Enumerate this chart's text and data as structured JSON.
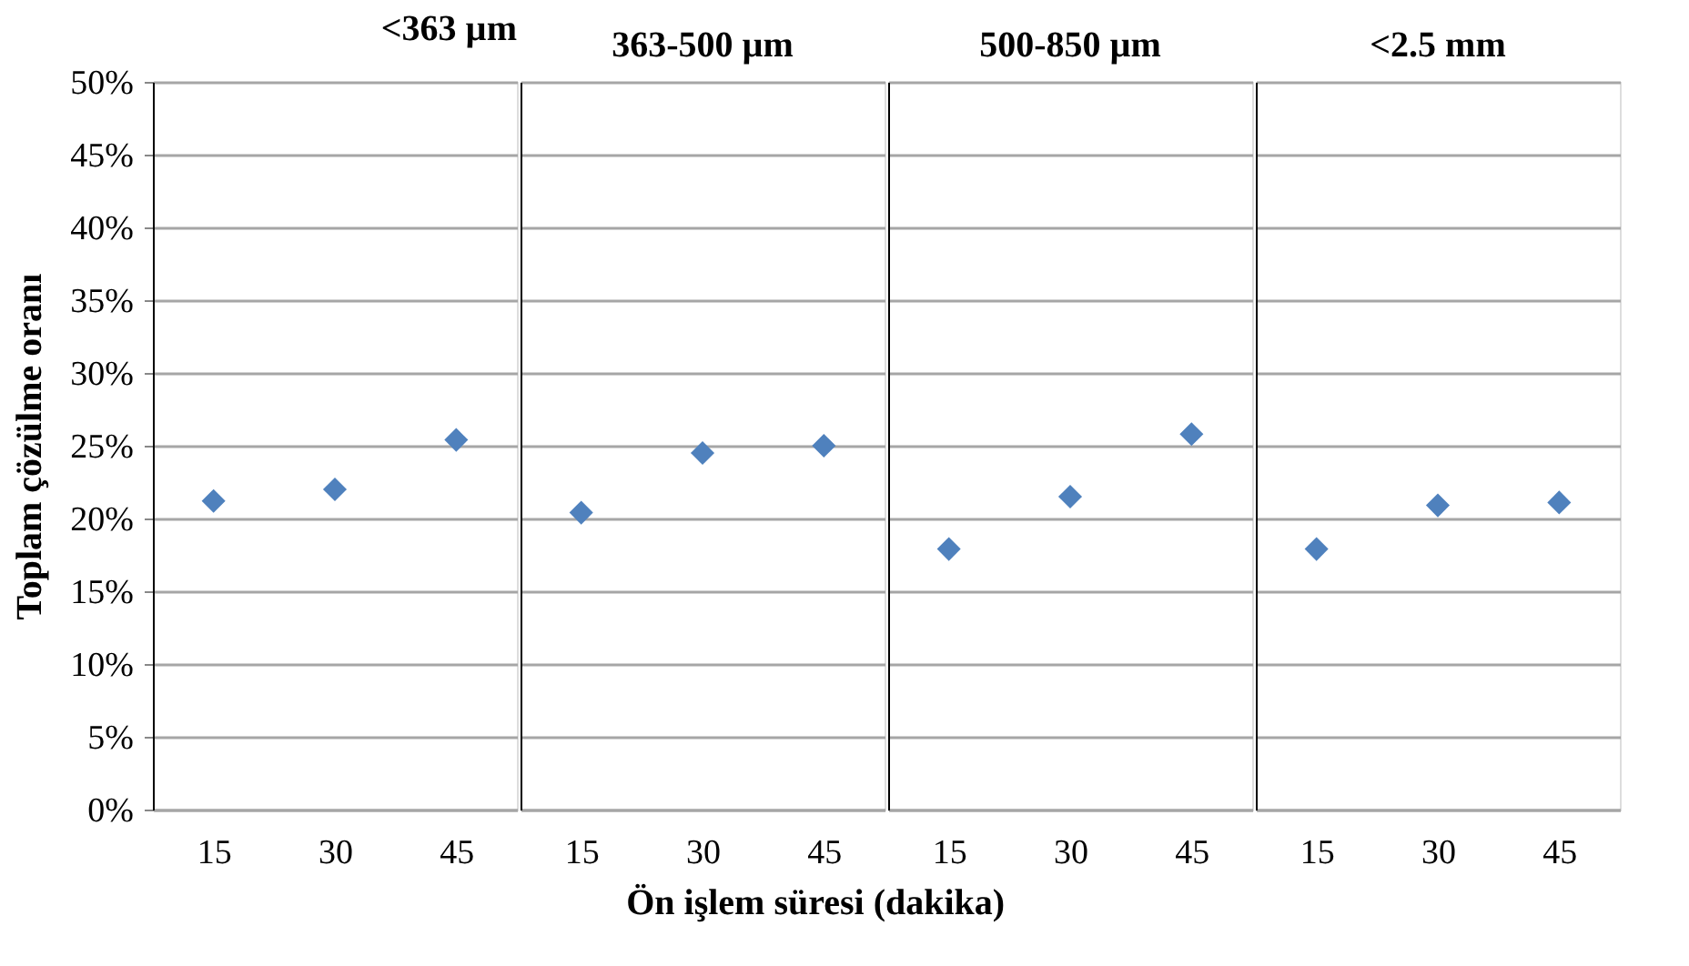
{
  "chart_data": [
    {
      "type": "scatter",
      "title": "<363 µm",
      "ylabel": "Toplam çözülme oranı",
      "xlabel": "Ön işlem süresi (dakika)",
      "categories": [
        "15",
        "30",
        "45"
      ],
      "series": [
        {
          "color": "#4f81bd",
          "values": [
            21.2,
            22.0,
            25.4
          ]
        }
      ],
      "marker": "diamond",
      "grid": "y",
      "ylim": [
        0,
        50
      ],
      "yticks": [
        {
          "value": 0,
          "label": "0%"
        },
        {
          "value": 5,
          "label": "5%"
        },
        {
          "value": 10,
          "label": "10%"
        },
        {
          "value": 15,
          "label": "15%"
        },
        {
          "value": 20,
          "label": "20%"
        },
        {
          "value": 25,
          "label": "25%"
        },
        {
          "value": 30,
          "label": "30%"
        },
        {
          "value": 35,
          "label": "35%"
        },
        {
          "value": 40,
          "label": "40%"
        },
        {
          "value": 45,
          "label": "45%"
        },
        {
          "value": 50,
          "label": "50%"
        }
      ]
    },
    {
      "type": "scatter",
      "title": "363-500 µm",
      "categories": [
        "15",
        "30",
        "45"
      ],
      "series": [
        {
          "color": "#4f81bd",
          "values": [
            20.4,
            24.5,
            25.0
          ]
        }
      ],
      "marker": "diamond",
      "grid": "y",
      "tick_labels": "x",
      "ylim": [
        0,
        50
      ],
      "yticks": [
        0,
        5,
        10,
        15,
        20,
        25,
        30,
        35,
        40,
        45,
        50
      ]
    },
    {
      "type": "scatter",
      "title": "500-850 µm",
      "categories": [
        "15",
        "30",
        "45"
      ],
      "series": [
        {
          "color": "#4f81bd",
          "values": [
            17.9,
            21.5,
            25.8
          ]
        }
      ],
      "marker": "diamond",
      "grid": "y",
      "tick_labels": "x",
      "ylim": [
        0,
        50
      ],
      "yticks": [
        0,
        5,
        10,
        15,
        20,
        25,
        30,
        35,
        40,
        45,
        50
      ]
    },
    {
      "type": "scatter",
      "title": "<2.5 mm",
      "categories": [
        "15",
        "30",
        "45"
      ],
      "series": [
        {
          "color": "#4f81bd",
          "values": [
            17.9,
            20.9,
            21.1
          ]
        }
      ],
      "marker": "diamond",
      "grid": "y",
      "tick_labels": "x",
      "ylim": [
        0,
        50
      ],
      "yticks": [
        0,
        5,
        10,
        15,
        20,
        25,
        30,
        35,
        40,
        45,
        50
      ]
    }
  ]
}
